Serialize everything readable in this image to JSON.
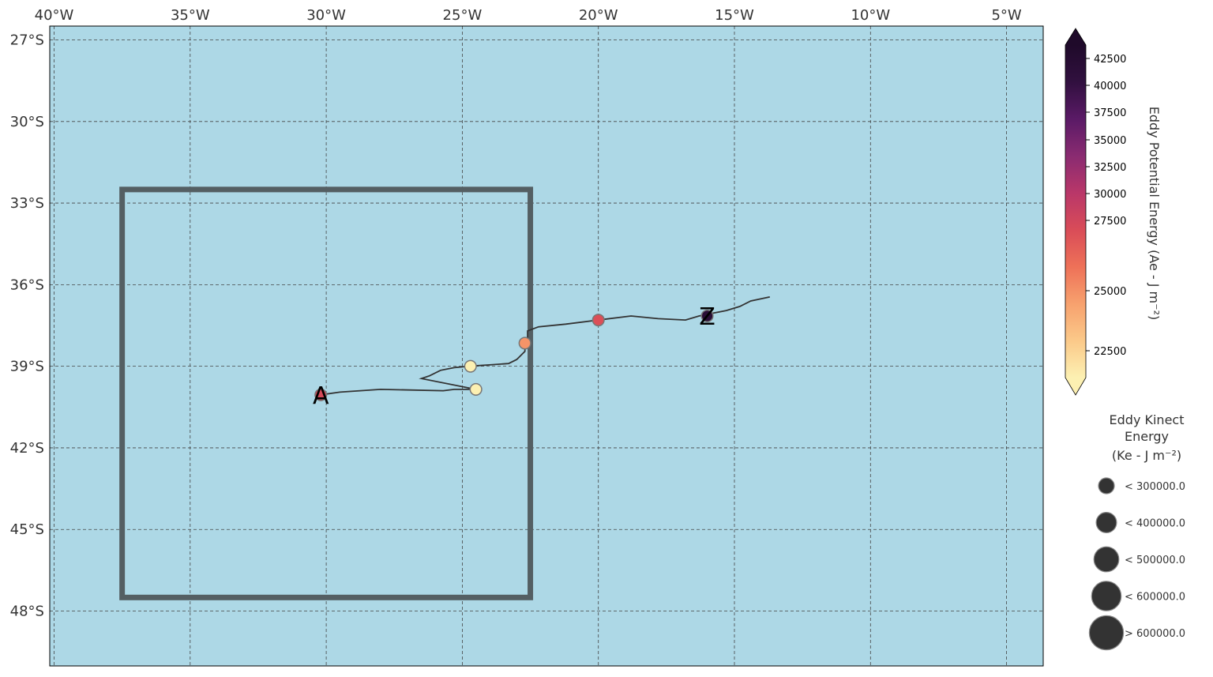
{
  "map": {
    "ocean_color": "#add8e6",
    "box_color": "#545f63",
    "track_color": "#333333",
    "lon_ticks": [
      {
        "lon": -40,
        "label": "40°W"
      },
      {
        "lon": -35,
        "label": "35°W"
      },
      {
        "lon": -30,
        "label": "30°W"
      },
      {
        "lon": -25,
        "label": "25°W"
      },
      {
        "lon": -20,
        "label": "20°W"
      },
      {
        "lon": -15,
        "label": "15°W"
      },
      {
        "lon": -10,
        "label": "10°W"
      },
      {
        "lon": -5,
        "label": "5°W"
      }
    ],
    "lat_ticks": [
      {
        "lat": -27,
        "label": "27°S"
      },
      {
        "lat": -30,
        "label": "30°S"
      },
      {
        "lat": -33,
        "label": "33°S"
      },
      {
        "lat": -36,
        "label": "36°S"
      },
      {
        "lat": -39,
        "label": "39°S"
      },
      {
        "lat": -42,
        "label": "42°S"
      },
      {
        "lat": -45,
        "label": "45°S"
      },
      {
        "lat": -48,
        "label": "48°S"
      }
    ],
    "region_box": {
      "lon_min": -37.5,
      "lon_max": -22.5,
      "lat_min": -47.5,
      "lat_max": -32.5
    },
    "track": [
      [
        -30.2,
        -40.05
      ],
      [
        -29.5,
        -39.95
      ],
      [
        -28.0,
        -39.85
      ],
      [
        -25.7,
        -39.9
      ],
      [
        -25.3,
        -39.85
      ],
      [
        -24.5,
        -39.85
      ],
      [
        -26.5,
        -39.45
      ],
      [
        -26.2,
        -39.35
      ],
      [
        -25.8,
        -39.15
      ],
      [
        -25.3,
        -39.05
      ],
      [
        -24.8,
        -39.0
      ],
      [
        -24.0,
        -38.95
      ],
      [
        -23.3,
        -38.9
      ],
      [
        -23.0,
        -38.75
      ],
      [
        -22.7,
        -38.45
      ],
      [
        -22.7,
        -38.15
      ],
      [
        -22.6,
        -38.05
      ],
      [
        -22.6,
        -37.7
      ],
      [
        -22.2,
        -37.55
      ],
      [
        -21.2,
        -37.45
      ],
      [
        -20.0,
        -37.3
      ],
      [
        -18.8,
        -37.15
      ],
      [
        -17.8,
        -37.25
      ],
      [
        -16.8,
        -37.3
      ],
      [
        -16.3,
        -37.15
      ],
      [
        -15.8,
        -37.05
      ],
      [
        -15.3,
        -36.95
      ],
      [
        -14.8,
        -36.8
      ],
      [
        -14.4,
        -36.6
      ],
      [
        -13.7,
        -36.45
      ]
    ],
    "eddies": [
      {
        "lon": -30.2,
        "lat": -40.05,
        "ape": 31500,
        "ke": 250000
      },
      {
        "lon": -24.5,
        "lat": -39.85,
        "ape": 21000,
        "ke": 250000
      },
      {
        "lon": -24.7,
        "lat": -39.0,
        "ape": 21000,
        "ke": 250000
      },
      {
        "lon": -22.7,
        "lat": -38.15,
        "ape": 26800,
        "ke": 250000
      },
      {
        "lon": -20.0,
        "lat": -37.3,
        "ape": 31000,
        "ke": 250000
      },
      {
        "lon": -16.0,
        "lat": -37.15,
        "ape": 42500,
        "ke": 250000
      }
    ],
    "start_label": {
      "text": "A",
      "lon": -30.2,
      "lat": -40.05
    },
    "end_label": {
      "text": "Z",
      "lon": -16.0,
      "lat": -37.15
    }
  },
  "colorbar": {
    "title": "Eddy Potential Energy (Ae -  J m⁻²)",
    "ticks": [
      42500,
      40000,
      37500,
      35000,
      32500,
      30000,
      27500,
      25000,
      22500
    ],
    "tick_labels": [
      "42500",
      "40000",
      "37500",
      "35000",
      "32500",
      "30000",
      "27500",
      "25000",
      "22500"
    ],
    "colors": [
      "#fcf0b2",
      "#fbc989",
      "#f7a16e",
      "#ee7158",
      "#d94c58",
      "#b93769",
      "#8a2b71",
      "#5a1a66",
      "#31103f",
      "#1f0a2a"
    ]
  },
  "size_legend": {
    "title_lines": [
      "Eddy Kinect",
      "Energy",
      "(Ke -  J m⁻²)"
    ],
    "items": [
      {
        "label": "< 300000.0"
      },
      {
        "label": "< 400000.0"
      },
      {
        "label": "< 500000.0"
      },
      {
        "label": "< 600000.0"
      },
      {
        "label": "> 600000.0"
      }
    ]
  }
}
